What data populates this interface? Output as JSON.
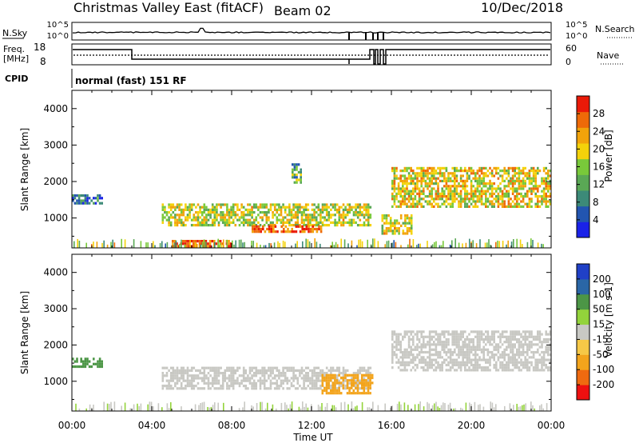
{
  "header": {
    "title": "Christmas Valley East (fitACF)",
    "beam": "Beam 02",
    "date": "10/Dec/2018"
  },
  "ribbon": {
    "nsky_label": "N.Sky",
    "nsearch_label": "N.Search",
    "noise_ticks": [
      "10^5",
      "10^0"
    ],
    "freq_label_1": "Freq.",
    "freq_label_2": "[MHz]",
    "freq_ticks": [
      "18",
      "8"
    ],
    "nave_label": "Nave",
    "nave_ticks": [
      "60",
      "0"
    ],
    "cpid_label": "CPID",
    "cpid_text": "normal (fast) 151 RF"
  },
  "colors": {
    "power": [
      "#1a22e8",
      "#2255b0",
      "#3c8a78",
      "#5aa855",
      "#79c93a",
      "#f4d20a",
      "#f2a30a",
      "#ee6a08",
      "#ea1a08"
    ],
    "velocity": [
      "#ee1010",
      "#ef6a10",
      "#f3a41c",
      "#f6c847",
      "#c8c8c3",
      "#93d33b",
      "#4c9646",
      "#2a66a6",
      "#2040c6"
    ]
  },
  "chart_data": [
    {
      "type": "heatmap",
      "panel": "power",
      "title": "",
      "xlabel": "Time UT",
      "ylabel": "Slant Range [km]",
      "xlim": [
        "00:00",
        "24:00"
      ],
      "ylim": [
        180,
        4500
      ],
      "x_ticks": [
        "00:00",
        "04:00",
        "08:00",
        "12:00",
        "16:00",
        "20:00",
        "00:00"
      ],
      "y_ticks": [
        1000,
        2000,
        3000,
        4000
      ],
      "colorbar": {
        "label": "Power [dB]",
        "range": [
          0,
          32
        ],
        "ticks": [
          4,
          8,
          12,
          16,
          20,
          24,
          28
        ]
      },
      "echo_regions": [
        {
          "from_ut": "00:00",
          "to_ut": "01:30",
          "range_km": [
            1400,
            1650
          ],
          "dB": 8
        },
        {
          "from_ut": "04:30",
          "to_ut": "15:00",
          "range_km": [
            800,
            1400
          ],
          "dB": 18
        },
        {
          "from_ut": "09:00",
          "to_ut": "12:30",
          "range_km": [
            600,
            800
          ],
          "dB": 28
        },
        {
          "from_ut": "05:00",
          "to_ut": "08:00",
          "range_km": [
            250,
            400
          ],
          "dB": 28
        },
        {
          "from_ut": "11:00",
          "to_ut": "11:30",
          "range_km": [
            2000,
            2500
          ],
          "dB": 12
        },
        {
          "from_ut": "15:30",
          "to_ut": "17:00",
          "range_km": [
            600,
            1100
          ],
          "dB": 18
        },
        {
          "from_ut": "16:00",
          "to_ut": "24:00",
          "range_km": [
            1300,
            2400
          ],
          "dB": 20
        }
      ]
    },
    {
      "type": "heatmap",
      "panel": "velocity",
      "title": "",
      "xlabel": "Time UT",
      "ylabel": "Slant Range [km]",
      "xlim": [
        "00:00",
        "24:00"
      ],
      "ylim": [
        180,
        4500
      ],
      "x_ticks": [
        "00:00",
        "04:00",
        "08:00",
        "12:00",
        "16:00",
        "20:00",
        "00:00"
      ],
      "y_ticks": [
        1000,
        2000,
        3000,
        4000
      ],
      "colorbar": {
        "label": "Velocity [m s-1]",
        "tick_labels": [
          "-200",
          "-100",
          "-50",
          "-15",
          "15",
          "50",
          "100",
          "200"
        ]
      },
      "echo_regions": [
        {
          "from_ut": "00:00",
          "to_ut": "01:30",
          "range_km": [
            1400,
            1650
          ],
          "m_s": 60
        },
        {
          "from_ut": "04:30",
          "to_ut": "15:00",
          "range_km": [
            800,
            1400
          ],
          "m_s": 0
        },
        {
          "from_ut": "12:30",
          "to_ut": "15:00",
          "range_km": [
            700,
            1200
          ],
          "m_s": -60
        },
        {
          "from_ut": "16:00",
          "to_ut": "24:00",
          "range_km": [
            1300,
            2400
          ],
          "m_s": 0
        }
      ]
    }
  ]
}
